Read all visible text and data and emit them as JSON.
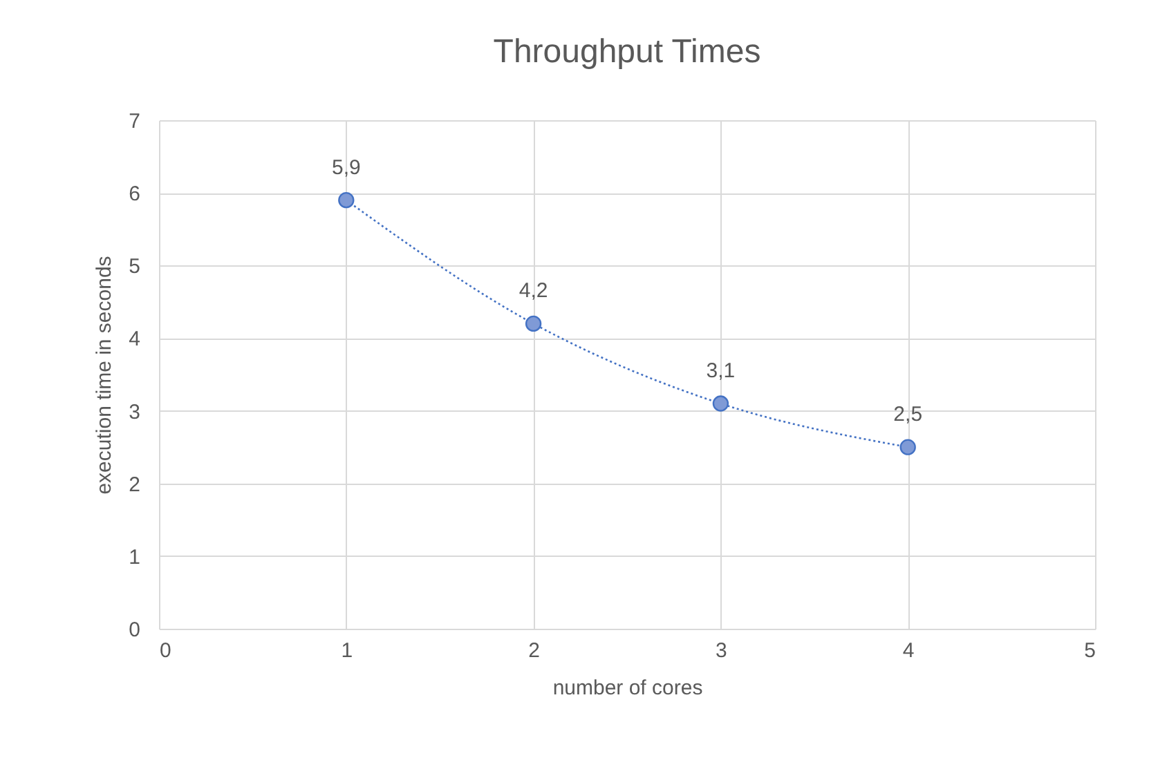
{
  "chart_data": {
    "type": "line",
    "title": "Throughput Times",
    "xlabel": "number of cores",
    "ylabel": "execution time in seconds",
    "x": [
      1,
      2,
      3,
      4
    ],
    "series": [
      {
        "color": "#4472c4",
        "values": [
          5.9,
          4.2,
          3.1,
          2.5
        ],
        "value_labels": [
          "5,9",
          "4,2",
          "3,1",
          "2,5"
        ]
      }
    ],
    "xlim": [
      0,
      5
    ],
    "xticks": [
      0,
      1,
      2,
      3,
      4,
      5
    ],
    "ylim": [
      0,
      7
    ],
    "yticks": [
      0,
      1,
      2,
      3,
      4,
      5,
      6,
      7
    ],
    "grid": true,
    "marker": "circle",
    "line_style": "dotted"
  }
}
